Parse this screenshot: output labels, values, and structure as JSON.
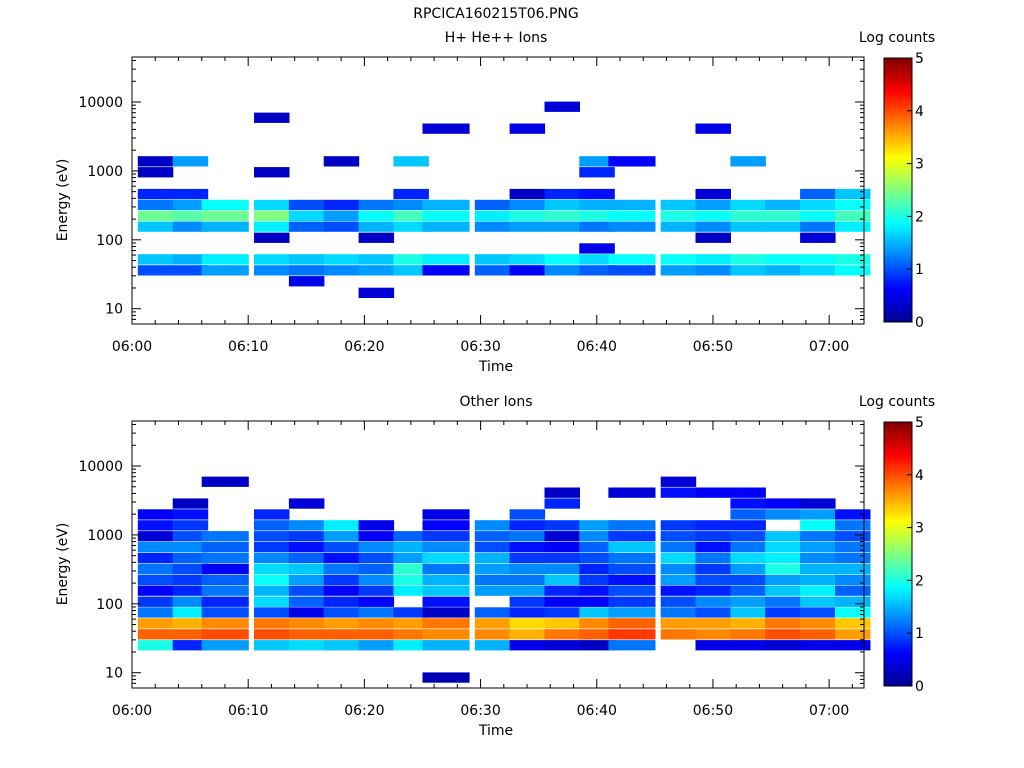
{
  "figure": {
    "title": "RPCICA160215T06.PNG"
  },
  "colors": {
    "background": "#ffffff",
    "axes": "#000000",
    "colormap": [
      "#00008f",
      "#0000ff",
      "#0080ff",
      "#00ffff",
      "#80ff80",
      "#ffff00",
      "#ff8000",
      "#ff0000",
      "#800000"
    ]
  },
  "chart_data": [
    {
      "type": "heatmap",
      "title": "H+ He++ Ions",
      "xlabel": "Time",
      "ylabel": "Energy (eV)",
      "x_ticks": [
        "06:00",
        "06:10",
        "06:20",
        "06:30",
        "06:40",
        "06:50",
        "07:00"
      ],
      "y_ticks": [
        "10",
        "100",
        "1000",
        "10000"
      ],
      "y_scale": "log",
      "ylim": [
        6,
        45000
      ],
      "xlim": [
        "06:00",
        "07:03"
      ],
      "colorbar": {
        "label": "Log counts",
        "range": [
          0,
          5
        ],
        "ticks": [
          "0",
          "1",
          "2",
          "3",
          "4",
          "5"
        ]
      },
      "time_bins": [
        "06:02",
        "06:05",
        "06:08",
        "06:12",
        "06:15",
        "06:18",
        "06:21",
        "06:24",
        "06:27",
        "06:31",
        "06:34",
        "06:37",
        "06:40",
        "06:43",
        "06:47",
        "06:50",
        "06:53",
        "06:56",
        "06:59",
        "07:02"
      ],
      "energy_bins_eV": [
        8.5,
        12,
        17,
        25,
        36,
        52,
        75,
        107,
        155,
        223,
        321,
        462,
        665,
        957,
        1377,
        1983,
        2855,
        4110,
        5917,
        8518,
        12263
      ],
      "z": [
        [
          null,
          null,
          null,
          null,
          1.0,
          1.6,
          null,
          null,
          1.6,
          2.4,
          1.2,
          0.8,
          null,
          0.3,
          0.3,
          null,
          null,
          null,
          null,
          null,
          null
        ],
        [
          null,
          null,
          null,
          null,
          1.0,
          1.5,
          null,
          null,
          1.3,
          2.3,
          1.4,
          0.8,
          null,
          null,
          1.4,
          null,
          null,
          null,
          null,
          null,
          null
        ],
        [
          null,
          null,
          null,
          null,
          1.4,
          1.8,
          null,
          null,
          1.5,
          2.4,
          1.9,
          null,
          null,
          null,
          null,
          null,
          null,
          null,
          null,
          null,
          null
        ],
        [
          null,
          null,
          null,
          null,
          1.3,
          1.7,
          null,
          0.3,
          1.8,
          2.5,
          1.7,
          null,
          null,
          0.3,
          null,
          null,
          null,
          null,
          0.3,
          null,
          null
        ],
        [
          null,
          null,
          null,
          0.5,
          1.2,
          1.6,
          null,
          null,
          1.1,
          1.7,
          1.0,
          null,
          null,
          null,
          null,
          null,
          null,
          null,
          null,
          null,
          null
        ],
        [
          null,
          null,
          null,
          null,
          1.3,
          1.7,
          null,
          null,
          1.0,
          1.4,
          0.8,
          null,
          null,
          null,
          0.3,
          null,
          null,
          null,
          null,
          null,
          null
        ],
        [
          null,
          null,
          0.4,
          null,
          1.4,
          1.6,
          null,
          0.3,
          1.5,
          1.9,
          1.2,
          null,
          null,
          null,
          null,
          null,
          null,
          null,
          null,
          null,
          null
        ],
        [
          null,
          null,
          null,
          null,
          1.6,
          2.0,
          null,
          null,
          1.7,
          2.2,
          1.3,
          0.8,
          null,
          null,
          1.6,
          null,
          null,
          null,
          null,
          null,
          null
        ],
        [
          null,
          null,
          null,
          null,
          0.6,
          1.8,
          null,
          null,
          1.5,
          1.9,
          1.5,
          null,
          null,
          null,
          null,
          null,
          null,
          0.4,
          null,
          null,
          null
        ],
        [
          null,
          null,
          null,
          null,
          1.1,
          1.6,
          null,
          null,
          1.3,
          1.8,
          1.1,
          null,
          null,
          null,
          null,
          null,
          null,
          null,
          null,
          null,
          null
        ],
        [
          null,
          null,
          null,
          null,
          0.6,
          1.7,
          null,
          null,
          1.4,
          2.0,
          1.3,
          0.3,
          null,
          null,
          null,
          null,
          null,
          0.5,
          null,
          null,
          null
        ],
        [
          null,
          null,
          null,
          null,
          1.3,
          1.9,
          null,
          null,
          1.4,
          2.1,
          1.6,
          0.8,
          null,
          null,
          null,
          null,
          null,
          null,
          null,
          0.4,
          null
        ],
        [
          null,
          null,
          null,
          null,
          1.1,
          1.7,
          0.5,
          null,
          1.2,
          2.0,
          1.5,
          0.7,
          null,
          0.8,
          1.4,
          null,
          null,
          null,
          null,
          null,
          null
        ],
        [
          null,
          null,
          null,
          null,
          1.0,
          1.9,
          null,
          null,
          1.3,
          1.9,
          1.5,
          null,
          null,
          null,
          0.6,
          null,
          null,
          null,
          null,
          null,
          null
        ],
        [
          null,
          null,
          null,
          null,
          1.4,
          1.9,
          null,
          null,
          1.5,
          2.0,
          1.6,
          null,
          null,
          null,
          null,
          null,
          null,
          null,
          null,
          null,
          null
        ],
        [
          null,
          null,
          null,
          null,
          1.3,
          1.8,
          null,
          0.3,
          1.3,
          1.9,
          1.4,
          0.4,
          null,
          null,
          null,
          null,
          null,
          0.5,
          null,
          null,
          null
        ],
        [
          null,
          null,
          null,
          null,
          1.6,
          2.0,
          null,
          null,
          1.6,
          2.1,
          1.7,
          null,
          null,
          null,
          1.4,
          null,
          null,
          null,
          null,
          null,
          null
        ],
        [
          null,
          null,
          null,
          null,
          1.5,
          1.9,
          null,
          null,
          1.6,
          2.1,
          1.5,
          null,
          null,
          null,
          null,
          null,
          null,
          null,
          null,
          null,
          null
        ],
        [
          null,
          null,
          null,
          null,
          1.7,
          1.9,
          null,
          0.4,
          1.2,
          1.9,
          1.7,
          1.1,
          null,
          null,
          null,
          null,
          null,
          null,
          null,
          null,
          null
        ],
        [
          null,
          null,
          null,
          null,
          1.9,
          2.0,
          null,
          null,
          1.8,
          2.2,
          1.9,
          1.6,
          null,
          null,
          null,
          null,
          null,
          null,
          null,
          null,
          null
        ]
      ]
    },
    {
      "type": "heatmap",
      "title": "Other Ions",
      "xlabel": "Time",
      "ylabel": "Energy (eV)",
      "x_ticks": [
        "06:00",
        "06:10",
        "06:20",
        "06:30",
        "06:40",
        "06:50",
        "07:00"
      ],
      "y_ticks": [
        "10",
        "100",
        "1000",
        "10000"
      ],
      "y_scale": "log",
      "ylim": [
        6,
        45000
      ],
      "xlim": [
        "06:00",
        "07:03"
      ],
      "colorbar": {
        "label": "Log counts",
        "range": [
          0,
          5
        ],
        "ticks": [
          "0",
          "1",
          "2",
          "3",
          "4",
          "5"
        ]
      },
      "time_bins": [
        "06:02",
        "06:05",
        "06:08",
        "06:12",
        "06:15",
        "06:18",
        "06:21",
        "06:24",
        "06:27",
        "06:31",
        "06:34",
        "06:37",
        "06:40",
        "06:43",
        "06:47",
        "06:50",
        "06:53",
        "06:56",
        "06:59",
        "07:02"
      ],
      "energy_bins_eV": [
        8.5,
        12,
        17,
        25,
        36,
        52,
        75,
        107,
        155,
        223,
        321,
        462,
        665,
        957,
        1377,
        1983,
        2855,
        4110,
        5917,
        8518,
        12263
      ],
      "z": [
        [
          null,
          null,
          null,
          2.0,
          3.9,
          3.6,
          1.2,
          0.9,
          0.6,
          1.0,
          1.2,
          0.8,
          1.3,
          0.4,
          0.7,
          0.6,
          null,
          null,
          null,
          null,
          null
        ],
        [
          null,
          null,
          null,
          0.8,
          3.9,
          3.5,
          1.8,
          1.3,
          0.8,
          0.9,
          1.0,
          1.1,
          1.3,
          1.0,
          0.9,
          0.7,
          0.3,
          null,
          null,
          null,
          null
        ],
        [
          null,
          null,
          null,
          1.4,
          4.0,
          3.7,
          1.0,
          0.8,
          1.2,
          1.1,
          0.6,
          1.2,
          1.1,
          1.2,
          null,
          null,
          null,
          null,
          0.3,
          null,
          null
        ],
        [
          null,
          null,
          null,
          1.6,
          4.0,
          3.8,
          1.0,
          1.7,
          1.5,
          1.9,
          1.7,
          1.3,
          0.9,
          1.0,
          1.1,
          0.8,
          null,
          null,
          null,
          null,
          null
        ],
        [
          null,
          null,
          null,
          1.7,
          3.9,
          3.7,
          0.5,
          1.1,
          1.0,
          1.4,
          1.6,
          1.1,
          0.7,
          0.9,
          1.3,
          null,
          0.4,
          null,
          null,
          null,
          null
        ],
        [
          null,
          null,
          null,
          1.6,
          3.9,
          3.6,
          1.0,
          0.8,
          0.6,
          0.9,
          1.2,
          0.7,
          1.0,
          1.4,
          1.8,
          null,
          null,
          null,
          null,
          null,
          null
        ],
        [
          null,
          null,
          null,
          1.4,
          3.9,
          3.7,
          1.2,
          0.6,
          0.9,
          1.3,
          1.1,
          1.0,
          1.3,
          0.6,
          0.5,
          null,
          null,
          null,
          null,
          null,
          null
        ],
        [
          null,
          null,
          null,
          1.8,
          3.8,
          3.6,
          0.9,
          null,
          1.8,
          2.0,
          2.1,
          1.4,
          1.5,
          1.1,
          null,
          null,
          null,
          null,
          null,
          null,
          null
        ],
        [
          0.2,
          null,
          null,
          1.5,
          3.7,
          3.8,
          0.3,
          0.7,
          1.6,
          1.5,
          1.2,
          1.7,
          1.3,
          0.9,
          0.6,
          0.5,
          null,
          null,
          null,
          null,
          null
        ],
        [
          null,
          null,
          null,
          1.5,
          3.7,
          3.6,
          1.1,
          null,
          1.4,
          1.2,
          1.4,
          1.5,
          1.0,
          1.1,
          1.3,
          null,
          null,
          null,
          null,
          null,
          null
        ],
        [
          null,
          null,
          null,
          0.5,
          3.5,
          3.3,
          0.8,
          0.9,
          1.4,
          1.2,
          1.3,
          0.9,
          0.7,
          1.2,
          0.8,
          1.0,
          null,
          null,
          null,
          null,
          null
        ],
        [
          null,
          null,
          null,
          0.4,
          3.8,
          3.4,
          0.9,
          0.6,
          0.8,
          1.6,
          1.3,
          0.9,
          0.6,
          0.4,
          0.9,
          null,
          0.8,
          0.3,
          null,
          null,
          null
        ],
        [
          null,
          null,
          null,
          0.3,
          3.9,
          3.7,
          1.6,
          0.6,
          0.7,
          0.9,
          0.8,
          1.0,
          1.1,
          1.3,
          1.4,
          null,
          null,
          null,
          null,
          null,
          null
        ],
        [
          null,
          null,
          null,
          1.2,
          4.1,
          3.9,
          1.4,
          0.9,
          1.0,
          0.7,
          1.0,
          1.2,
          1.6,
          0.9,
          1.2,
          null,
          null,
          0.4,
          null,
          null,
          null
        ],
        [
          null,
          null,
          null,
          null,
          3.8,
          3.6,
          1.2,
          1.0,
          0.7,
          1.4,
          1.3,
          1.7,
          1.2,
          1.0,
          0.9,
          null,
          null,
          0.7,
          0.4,
          null,
          null
        ],
        [
          null,
          null,
          null,
          0.5,
          3.7,
          3.6,
          1.0,
          1.3,
          0.8,
          1.0,
          0.9,
          1.2,
          0.7,
          0.9,
          0.8,
          null,
          null,
          0.6,
          null,
          null,
          null
        ],
        [
          null,
          null,
          null,
          0.5,
          3.8,
          3.5,
          1.6,
          1.4,
          1.1,
          1.0,
          1.4,
          1.7,
          1.2,
          1.0,
          0.8,
          1.1,
          0.7,
          0.6,
          null,
          null,
          null
        ],
        [
          null,
          null,
          null,
          0.4,
          4.0,
          3.8,
          0.9,
          1.2,
          1.6,
          1.4,
          2.0,
          1.8,
          1.7,
          1.6,
          null,
          1.3,
          0.6,
          null,
          null,
          null,
          null
        ],
        [
          null,
          null,
          null,
          0.5,
          3.9,
          3.7,
          1.0,
          1.6,
          1.8,
          1.5,
          1.5,
          1.3,
          1.4,
          1.2,
          1.9,
          1.4,
          0.4,
          null,
          null,
          null,
          null
        ],
        [
          null,
          null,
          null,
          0.5,
          3.6,
          3.4,
          1.9,
          1.5,
          1.1,
          1.3,
          1.5,
          1.2,
          1.2,
          1.0,
          1.2,
          0.7,
          null,
          null,
          null,
          null,
          null
        ]
      ]
    }
  ]
}
